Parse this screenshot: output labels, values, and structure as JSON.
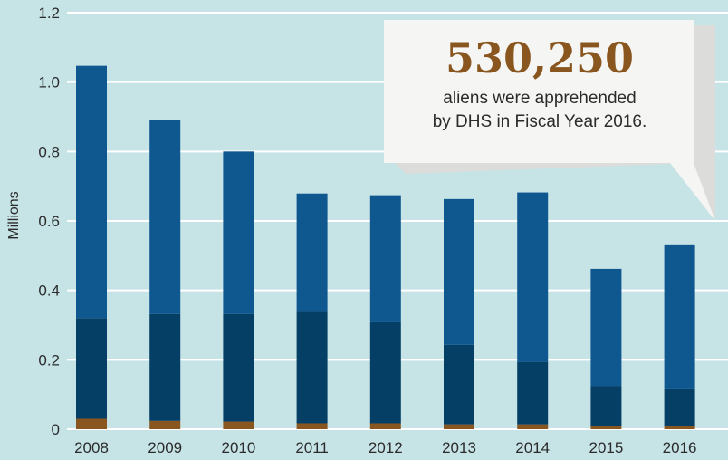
{
  "colors": {
    "background": "#c6e3e6",
    "gridline": "#ffffff",
    "series_top": "#0f588f",
    "series_mid": "#053f66",
    "series_bottom": "#8a5620",
    "callout_bg": "#f5f5f3",
    "callout_shadow": "#dcdcdb",
    "callout_value": "#8a5620"
  },
  "callout": {
    "value": "530,250",
    "line1": "aliens were apprehended",
    "line2": "by DHS in Fiscal Year 2016."
  },
  "chart_data": {
    "type": "bar",
    "stacked": true,
    "categories": [
      "2008",
      "2009",
      "2010",
      "2011",
      "2012",
      "2013",
      "2014",
      "2015",
      "2016"
    ],
    "series": [
      {
        "values": [
          0.03,
          0.024,
          0.022,
          0.017,
          0.017,
          0.014,
          0.014,
          0.01,
          0.01
        ]
      },
      {
        "values": [
          0.29,
          0.308,
          0.31,
          0.321,
          0.291,
          0.229,
          0.18,
          0.115,
          0.105
        ]
      },
      {
        "values": [
          0.727,
          0.56,
          0.468,
          0.341,
          0.366,
          0.42,
          0.488,
          0.337,
          0.415
        ]
      }
    ],
    "title": "",
    "xlabel": "",
    "ylabel": "Millions",
    "ylim": [
      0,
      1.2
    ],
    "yticks": [
      {
        "value": 0,
        "label": "0"
      },
      {
        "value": 0.2,
        "label": "0.2"
      },
      {
        "value": 0.4,
        "label": "0.4"
      },
      {
        "value": 0.6,
        "label": "0.6"
      },
      {
        "value": 0.8,
        "label": "0.8"
      },
      {
        "value": 1.0,
        "label": "1.0"
      },
      {
        "value": 1.2,
        "label": "1.2"
      }
    ],
    "grid": true,
    "legend": "none"
  }
}
